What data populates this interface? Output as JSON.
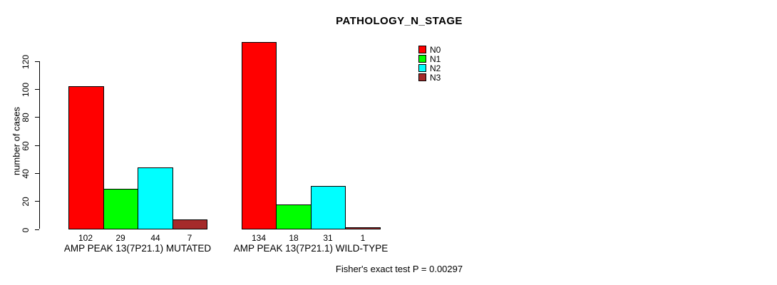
{
  "chart_data": {
    "type": "bar",
    "title": "PATHOLOGY_N_STAGE",
    "xlabel": "",
    "ylabel": "number of cases",
    "ylim": [
      0,
      135
    ],
    "yticks": [
      0,
      20,
      40,
      60,
      80,
      100,
      120
    ],
    "grid": false,
    "legend_position": "top-right",
    "categories": [
      "AMP PEAK 13(7P21.1) MUTATED",
      "AMP PEAK 13(7P21.1) WILD-TYPE"
    ],
    "series": [
      {
        "name": "N0",
        "color": "#ff0000",
        "values": [
          102,
          134
        ]
      },
      {
        "name": "N1",
        "color": "#00ff00",
        "values": [
          29,
          18
        ]
      },
      {
        "name": "N2",
        "color": "#00ffff",
        "values": [
          44,
          31
        ]
      },
      {
        "name": "N3",
        "color": "#a52a2a",
        "values": [
          7,
          1
        ]
      }
    ],
    "bar_value_labels_shown": true
  },
  "footer": {
    "note": "Fisher's exact test P = 0.00297"
  },
  "colors": {
    "background": "#ffffff",
    "axis": "#000000",
    "text": "#000000"
  }
}
